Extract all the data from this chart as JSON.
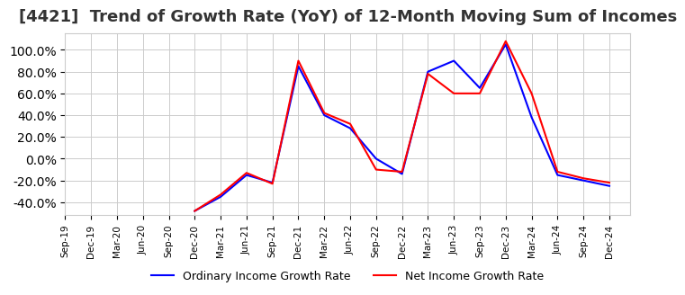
{
  "title": "[4421]  Trend of Growth Rate (YoY) of 12-Month Moving Sum of Incomes",
  "title_fontsize": 13,
  "ylim": [
    -0.52,
    1.15
  ],
  "yticks": [
    -0.4,
    -0.2,
    0.0,
    0.2,
    0.4,
    0.6,
    0.8,
    1.0
  ],
  "legend_labels": [
    "Ordinary Income Growth Rate",
    "Net Income Growth Rate"
  ],
  "dates": [
    "Sep-19",
    "Dec-19",
    "Mar-20",
    "Jun-20",
    "Sep-20",
    "Dec-20",
    "Mar-21",
    "Jun-21",
    "Sep-21",
    "Dec-21",
    "Mar-22",
    "Jun-22",
    "Sep-22",
    "Dec-22",
    "Mar-23",
    "Jun-23",
    "Sep-23",
    "Dec-23",
    "Mar-24",
    "Jun-24",
    "Sep-24",
    "Dec-24"
  ],
  "ordinary_income": [
    null,
    null,
    null,
    null,
    null,
    -0.48,
    -0.35,
    -0.15,
    -0.22,
    0.85,
    0.4,
    0.28,
    0.0,
    -0.14,
    0.8,
    0.9,
    0.65,
    1.05,
    0.38,
    -0.15,
    -0.2,
    -0.25
  ],
  "net_income": [
    null,
    null,
    null,
    null,
    null,
    -0.48,
    -0.33,
    -0.13,
    -0.23,
    0.9,
    0.42,
    0.32,
    -0.1,
    -0.12,
    0.78,
    0.6,
    0.6,
    1.08,
    0.6,
    -0.12,
    -0.18,
    -0.22
  ],
  "grid_color": "#cccccc",
  "background_color": "#ffffff",
  "line_width": 1.5,
  "ordinary_color": "#0000ff",
  "net_color": "#ff0000"
}
